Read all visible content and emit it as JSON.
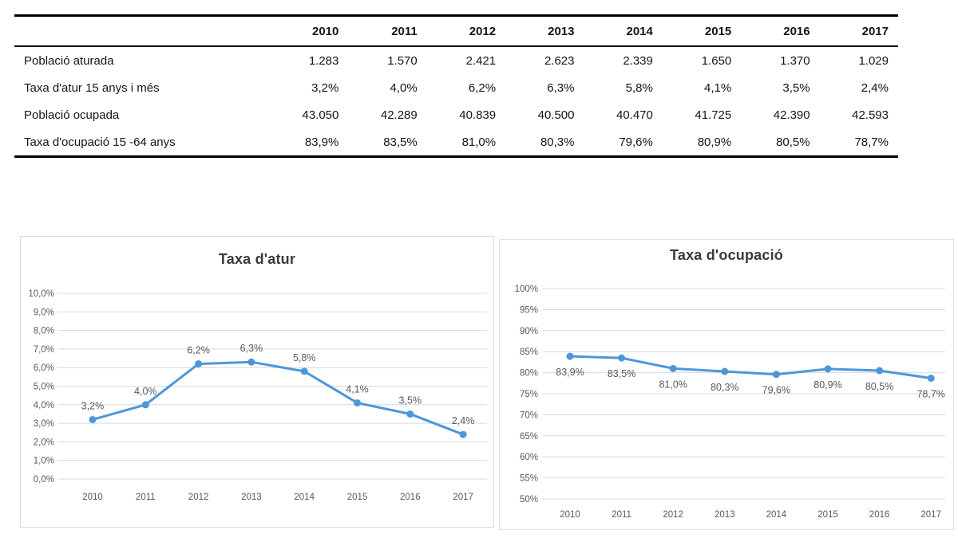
{
  "table": {
    "years": [
      "2010",
      "2011",
      "2012",
      "2013",
      "2014",
      "2015",
      "2016",
      "2017"
    ],
    "rows": [
      {
        "label": "Població aturada",
        "values": [
          "1.283",
          "1.570",
          "2.421",
          "2.623",
          "2.339",
          "1.650",
          "1.370",
          "1.029"
        ]
      },
      {
        "label": "Taxa d'atur 15 anys i més",
        "values": [
          "3,2%",
          "4,0%",
          "6,2%",
          "6,3%",
          "5,8%",
          "4,1%",
          "3,5%",
          "2,4%"
        ]
      },
      {
        "label": "Població ocupada",
        "values": [
          "43.050",
          "42.289",
          "40.839",
          "40.500",
          "40.470",
          "41.725",
          "42.390",
          "42.593"
        ]
      },
      {
        "label": "Taxa d'ocupació 15 -64 anys",
        "values": [
          "83,9%",
          "83,5%",
          "81,0%",
          "80,3%",
          "79,6%",
          "80,9%",
          "80,5%",
          "78,7%"
        ]
      }
    ]
  },
  "chart_data": [
    {
      "type": "line",
      "title": "Taxa d'atur",
      "x": [
        "2010",
        "2011",
        "2012",
        "2013",
        "2014",
        "2015",
        "2016",
        "2017"
      ],
      "values": [
        3.2,
        4.0,
        6.2,
        6.3,
        5.8,
        4.1,
        3.5,
        2.4
      ],
      "labels": [
        "3,2%",
        "4,0%",
        "6,2%",
        "6,3%",
        "5,8%",
        "4,1%",
        "3,5%",
        "2,4%"
      ],
      "yticks": [
        "10,0%",
        "9,0%",
        "8,0%",
        "7,0%",
        "6,0%",
        "5,0%",
        "4,0%",
        "3,0%",
        "2,0%",
        "1,0%",
        "0,0%"
      ],
      "ylim": [
        0,
        10
      ],
      "grid": true,
      "legend": "none",
      "line_color": "#4e96db"
    },
    {
      "type": "line",
      "title": "Taxa d'ocupació",
      "x": [
        "2010",
        "2011",
        "2012",
        "2013",
        "2014",
        "2015",
        "2016",
        "2017"
      ],
      "values": [
        83.9,
        83.5,
        81.0,
        80.3,
        79.6,
        80.9,
        80.5,
        78.7
      ],
      "labels": [
        "83,9%",
        "83,5%",
        "81,0%",
        "80,3%",
        "79,6%",
        "80,9%",
        "80,5%",
        "78,7%"
      ],
      "yticks": [
        "100%",
        "95%",
        "90%",
        "85%",
        "80%",
        "75%",
        "70%",
        "65%",
        "60%",
        "55%",
        "50%"
      ],
      "ylim": [
        50,
        100
      ],
      "grid": true,
      "legend": "none",
      "line_color": "#4e96db"
    }
  ],
  "colors": {
    "accent_line": "#4e96db",
    "grid": "#d9d9d9",
    "tick_text": "#595959",
    "label_text": "#595959",
    "title_text": "#3a3a3a",
    "table_border": "#000000"
  }
}
